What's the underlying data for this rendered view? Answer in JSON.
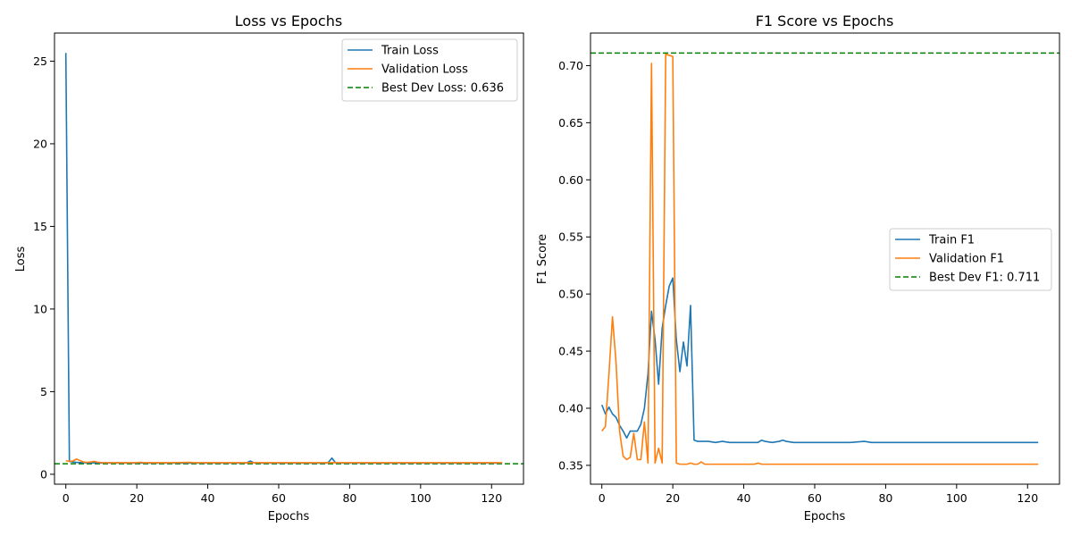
{
  "chart_data": [
    {
      "type": "line",
      "title": "Loss vs Epochs",
      "xlabel": "Epochs",
      "ylabel": "Loss",
      "xlim": [
        -3.2,
        129
      ],
      "ylim": [
        -0.6,
        26.7
      ],
      "xticks": [
        "0",
        "20",
        "40",
        "60",
        "80",
        "100",
        "120"
      ],
      "yticks": [
        "0",
        "5",
        "10",
        "15",
        "20",
        "25"
      ],
      "grid": false,
      "legend_position": "top-right",
      "reference_line": {
        "label": "Best Dev Loss: 0.636",
        "y": 0.636,
        "color": "#008000"
      },
      "series": [
        {
          "name": "Train Loss",
          "color": "#1f77b4",
          "x": [
            0,
            1,
            2,
            3,
            4,
            5,
            6,
            7,
            8,
            9,
            10,
            12,
            15,
            18,
            20,
            25,
            30,
            35,
            40,
            45,
            50,
            51,
            52,
            53,
            55,
            60,
            65,
            70,
            73,
            74,
            75,
            76,
            77,
            80,
            85,
            90,
            95,
            100,
            105,
            110,
            115,
            120,
            123
          ],
          "values": [
            25.5,
            0.78,
            0.74,
            0.72,
            0.71,
            0.7,
            0.7,
            0.69,
            0.7,
            0.69,
            0.69,
            0.69,
            0.69,
            0.68,
            0.69,
            0.68,
            0.68,
            0.68,
            0.68,
            0.68,
            0.68,
            0.7,
            0.8,
            0.7,
            0.68,
            0.68,
            0.68,
            0.68,
            0.68,
            0.72,
            0.98,
            0.7,
            0.68,
            0.68,
            0.68,
            0.68,
            0.68,
            0.68,
            0.68,
            0.68,
            0.68,
            0.68,
            0.68
          ]
        },
        {
          "name": "Validation Loss",
          "color": "#ff7f0e",
          "x": [
            0,
            1,
            2,
            3,
            4,
            5,
            6,
            7,
            8,
            9,
            10,
            12,
            15,
            20,
            21,
            22,
            25,
            30,
            35,
            36,
            40,
            45,
            50,
            55,
            60,
            70,
            80,
            90,
            100,
            110,
            120,
            123
          ],
          "values": [
            0.82,
            0.78,
            0.8,
            0.92,
            0.83,
            0.74,
            0.72,
            0.74,
            0.78,
            0.73,
            0.71,
            0.7,
            0.7,
            0.7,
            0.72,
            0.7,
            0.7,
            0.7,
            0.72,
            0.7,
            0.7,
            0.7,
            0.7,
            0.7,
            0.7,
            0.7,
            0.7,
            0.7,
            0.7,
            0.7,
            0.7,
            0.7
          ]
        }
      ]
    },
    {
      "type": "line",
      "title": "F1 Score vs Epochs",
      "xlabel": "Epochs",
      "ylabel": "F1 Score",
      "xlim": [
        -3.2,
        129
      ],
      "ylim": [
        0.3335,
        0.7285
      ],
      "xticks": [
        "0",
        "20",
        "40",
        "60",
        "80",
        "100",
        "120"
      ],
      "yticks": [
        "0.35",
        "0.40",
        "0.45",
        "0.50",
        "0.55",
        "0.60",
        "0.65",
        "0.70"
      ],
      "grid": false,
      "legend_position": "center-right",
      "reference_line": {
        "label": "Best Dev F1: 0.711",
        "y": 0.711,
        "color": "#008000"
      },
      "series": [
        {
          "name": "Train F1",
          "color": "#1f77b4",
          "x": [
            0,
            1,
            2,
            3,
            4,
            5,
            6,
            7,
            8,
            9,
            10,
            11,
            12,
            13,
            14,
            15,
            16,
            17,
            18,
            19,
            20,
            21,
            22,
            23,
            24,
            25,
            26,
            27,
            28,
            29,
            30,
            32,
            34,
            36,
            38,
            40,
            42,
            44,
            45,
            46,
            48,
            50,
            51,
            52,
            54,
            56,
            58,
            60,
            70,
            74,
            76,
            80,
            90,
            100,
            110,
            120,
            123
          ],
          "values": [
            0.403,
            0.395,
            0.401,
            0.395,
            0.392,
            0.385,
            0.38,
            0.374,
            0.38,
            0.38,
            0.38,
            0.386,
            0.4,
            0.43,
            0.485,
            0.46,
            0.421,
            0.47,
            0.49,
            0.507,
            0.514,
            0.46,
            0.432,
            0.458,
            0.437,
            0.49,
            0.372,
            0.371,
            0.371,
            0.371,
            0.371,
            0.37,
            0.371,
            0.37,
            0.37,
            0.37,
            0.37,
            0.37,
            0.372,
            0.371,
            0.37,
            0.371,
            0.372,
            0.371,
            0.37,
            0.37,
            0.37,
            0.37,
            0.37,
            0.371,
            0.37,
            0.37,
            0.37,
            0.37,
            0.37,
            0.37,
            0.37
          ]
        },
        {
          "name": "Validation F1",
          "color": "#ff7f0e",
          "x": [
            0,
            1,
            2,
            3,
            4,
            5,
            6,
            7,
            8,
            9,
            10,
            11,
            12,
            13,
            14,
            15,
            16,
            17,
            18,
            19,
            20,
            21,
            22,
            23,
            24,
            25,
            26,
            27,
            28,
            29,
            30,
            35,
            40,
            43,
            44,
            45,
            50,
            60,
            70,
            80,
            90,
            100,
            110,
            120,
            123
          ],
          "values": [
            0.38,
            0.384,
            0.43,
            0.48,
            0.44,
            0.38,
            0.358,
            0.355,
            0.357,
            0.378,
            0.355,
            0.355,
            0.388,
            0.352,
            0.702,
            0.352,
            0.365,
            0.352,
            0.71,
            0.709,
            0.708,
            0.352,
            0.351,
            0.351,
            0.351,
            0.352,
            0.351,
            0.351,
            0.353,
            0.351,
            0.351,
            0.351,
            0.351,
            0.351,
            0.352,
            0.351,
            0.351,
            0.351,
            0.351,
            0.351,
            0.351,
            0.351,
            0.351,
            0.351,
            0.351
          ]
        }
      ]
    }
  ]
}
